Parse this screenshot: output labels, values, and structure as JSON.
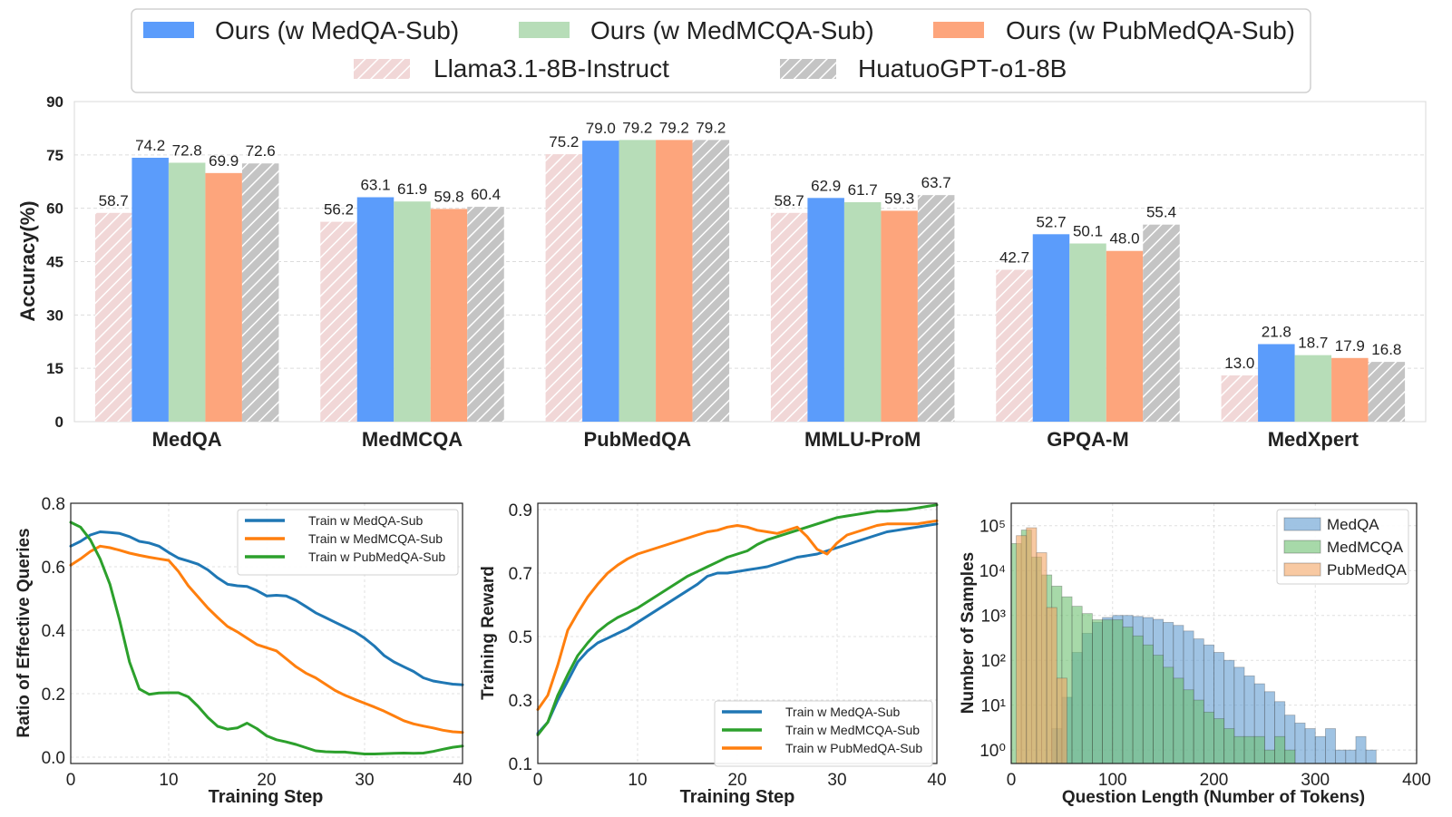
{
  "legend": {
    "items": [
      {
        "label": "Ours (w MedQA-Sub)",
        "color": "#5b9cfb",
        "hatch": false
      },
      {
        "label": "Ours (w MedMCQA-Sub)",
        "color": "#b7ddb8",
        "hatch": false
      },
      {
        "label": "Ours (w PubMedQA-Sub)",
        "color": "#fda57c",
        "hatch": false
      },
      {
        "label": "Llama3.1-8B-Instruct",
        "color": "#f1d7d7",
        "hatch": true
      },
      {
        "label": "HuatuoGPT-o1-8B",
        "color": "#c4c4c4",
        "hatch": true
      }
    ]
  },
  "chart_data": [
    {
      "type": "bar",
      "title": "",
      "xlabel": "",
      "ylabel": "Accuracy(%)",
      "ylim": [
        0,
        90
      ],
      "yticks": [
        "0",
        "15",
        "30",
        "45",
        "60",
        "75",
        "90"
      ],
      "categories": [
        "MedQA",
        "MedMCQA",
        "PubMedQA",
        "MMLU-ProM",
        "GPQA-M",
        "MedXpert"
      ],
      "series": [
        {
          "name": "Llama3.1-8B-Instruct",
          "color": "#f1d7d7",
          "hatch": true,
          "values": [
            58.7,
            56.2,
            75.2,
            58.7,
            42.7,
            13.0
          ],
          "labels": [
            "58.7",
            "56.2",
            "75.2",
            "58.7",
            "42.7",
            "13.0"
          ]
        },
        {
          "name": "Ours (w MedQA-Sub)",
          "color": "#5b9cfb",
          "hatch": false,
          "values": [
            74.2,
            63.1,
            79.0,
            62.9,
            52.7,
            21.8
          ],
          "labels": [
            "74.2",
            "63.1",
            "79.0",
            "62.9",
            "52.7",
            "21.8"
          ]
        },
        {
          "name": "Ours (w MedMCQA-Sub)",
          "color": "#b7ddb8",
          "hatch": false,
          "values": [
            72.8,
            61.9,
            79.2,
            61.7,
            50.1,
            18.7
          ],
          "labels": [
            "72.8",
            "61.9",
            "79.2",
            "61.7",
            "50.1",
            "18.7"
          ]
        },
        {
          "name": "Ours (w PubMedQA-Sub)",
          "color": "#fda57c",
          "hatch": false,
          "values": [
            69.9,
            59.8,
            79.2,
            59.3,
            48.0,
            17.9
          ],
          "labels": [
            "69.9",
            "59.8",
            "79.2",
            "59.3",
            "48.0",
            "17.9"
          ]
        },
        {
          "name": "HuatuoGPT-o1-8B",
          "color": "#c4c4c4",
          "hatch": true,
          "values": [
            72.6,
            60.4,
            79.2,
            63.7,
            55.4,
            16.8
          ],
          "labels": [
            "72.6",
            "60.4",
            "79.2",
            "63.7",
            "55.4",
            "16.8"
          ]
        }
      ]
    },
    {
      "type": "line",
      "xlabel": "Training Step",
      "ylabel": "Ratio of Effective Queries",
      "xlim": [
        0,
        40
      ],
      "ylim": [
        -0.02,
        0.8
      ],
      "xticks": [
        0,
        10,
        20,
        30,
        40
      ],
      "yticks": [
        0.0,
        0.2,
        0.4,
        0.6,
        0.8
      ],
      "ytick_labels": [
        "0.0",
        "0.2",
        "0.4",
        "0.6",
        "0.8"
      ],
      "x": [
        0,
        1,
        2,
        3,
        4,
        5,
        6,
        7,
        8,
        9,
        10,
        11,
        12,
        13,
        14,
        15,
        16,
        17,
        18,
        19,
        20,
        21,
        22,
        23,
        24,
        25,
        26,
        27,
        28,
        29,
        30,
        31,
        32,
        33,
        34,
        35,
        36,
        37,
        38,
        39,
        40
      ],
      "series": [
        {
          "name": "Train w MedQA-Sub",
          "color": "#1f77b4",
          "values": [
            0.665,
            0.68,
            0.7,
            0.71,
            0.708,
            0.705,
            0.695,
            0.68,
            0.675,
            0.665,
            0.645,
            0.627,
            0.618,
            0.608,
            0.59,
            0.565,
            0.545,
            0.54,
            0.538,
            0.525,
            0.508,
            0.51,
            0.508,
            0.494,
            0.475,
            0.455,
            0.44,
            0.425,
            0.41,
            0.395,
            0.375,
            0.35,
            0.32,
            0.3,
            0.285,
            0.27,
            0.25,
            0.24,
            0.235,
            0.23,
            0.228
          ]
        },
        {
          "name": "Train w MedMCQA-Sub",
          "color": "#ff7f0e",
          "values": [
            0.605,
            0.625,
            0.648,
            0.665,
            0.66,
            0.652,
            0.643,
            0.636,
            0.63,
            0.625,
            0.62,
            0.585,
            0.54,
            0.505,
            0.47,
            0.44,
            0.412,
            0.395,
            0.375,
            0.355,
            0.345,
            0.335,
            0.31,
            0.285,
            0.265,
            0.25,
            0.23,
            0.21,
            0.195,
            0.182,
            0.17,
            0.158,
            0.145,
            0.13,
            0.115,
            0.105,
            0.098,
            0.092,
            0.085,
            0.08,
            0.078
          ]
        },
        {
          "name": "Train w PubMedQA-Sub",
          "color": "#2ca02c",
          "values": [
            0.74,
            0.725,
            0.685,
            0.625,
            0.545,
            0.43,
            0.3,
            0.215,
            0.198,
            0.202,
            0.203,
            0.203,
            0.19,
            0.16,
            0.125,
            0.097,
            0.088,
            0.092,
            0.107,
            0.09,
            0.067,
            0.055,
            0.048,
            0.04,
            0.03,
            0.02,
            0.017,
            0.016,
            0.016,
            0.013,
            0.01,
            0.01,
            0.011,
            0.012,
            0.013,
            0.012,
            0.013,
            0.018,
            0.025,
            0.031,
            0.035
          ]
        }
      ]
    },
    {
      "type": "line",
      "xlabel": "Training Step",
      "ylabel": "Training Reward",
      "xlim": [
        0,
        40
      ],
      "ylim": [
        0.1,
        0.92
      ],
      "xticks": [
        0,
        10,
        20,
        30,
        40
      ],
      "yticks": [
        0.1,
        0.3,
        0.5,
        0.7,
        0.9
      ],
      "ytick_labels": [
        "0.1",
        "0.3",
        "0.5",
        "0.7",
        "0.9"
      ],
      "x": [
        0,
        1,
        2,
        3,
        4,
        5,
        6,
        7,
        8,
        9,
        10,
        11,
        12,
        13,
        14,
        15,
        16,
        17,
        18,
        19,
        20,
        21,
        22,
        23,
        24,
        25,
        26,
        27,
        28,
        29,
        30,
        31,
        32,
        33,
        34,
        35,
        36,
        37,
        38,
        39,
        40
      ],
      "series": [
        {
          "name": "Train w MedQA-Sub",
          "color": "#1f77b4",
          "values": [
            0.195,
            0.23,
            0.3,
            0.36,
            0.42,
            0.455,
            0.48,
            0.495,
            0.51,
            0.525,
            0.545,
            0.565,
            0.585,
            0.605,
            0.625,
            0.645,
            0.665,
            0.69,
            0.7,
            0.7,
            0.705,
            0.71,
            0.715,
            0.72,
            0.73,
            0.74,
            0.75,
            0.755,
            0.76,
            0.77,
            0.78,
            0.79,
            0.8,
            0.81,
            0.82,
            0.83,
            0.835,
            0.84,
            0.845,
            0.85,
            0.855
          ]
        },
        {
          "name": "Train w MedMCQA-Sub",
          "color": "#2ca02c",
          "values": [
            0.19,
            0.23,
            0.315,
            0.38,
            0.44,
            0.48,
            0.515,
            0.54,
            0.56,
            0.575,
            0.59,
            0.61,
            0.63,
            0.65,
            0.67,
            0.69,
            0.705,
            0.72,
            0.735,
            0.75,
            0.76,
            0.77,
            0.79,
            0.805,
            0.815,
            0.825,
            0.835,
            0.845,
            0.855,
            0.865,
            0.875,
            0.88,
            0.885,
            0.89,
            0.895,
            0.895,
            0.898,
            0.9,
            0.905,
            0.91,
            0.915
          ]
        },
        {
          "name": "Train w PubMedQA-Sub",
          "color": "#ff7f0e",
          "values": [
            0.27,
            0.315,
            0.41,
            0.52,
            0.575,
            0.625,
            0.665,
            0.7,
            0.725,
            0.745,
            0.76,
            0.77,
            0.78,
            0.79,
            0.8,
            0.81,
            0.82,
            0.83,
            0.835,
            0.845,
            0.85,
            0.845,
            0.835,
            0.83,
            0.825,
            0.835,
            0.845,
            0.815,
            0.775,
            0.76,
            0.795,
            0.82,
            0.83,
            0.84,
            0.85,
            0.855,
            0.855,
            0.855,
            0.855,
            0.86,
            0.865
          ]
        }
      ]
    },
    {
      "type": "histogram",
      "xlabel": "Question Length (Number of Tokens)",
      "ylabel": "Number of Samples",
      "xlim": [
        0,
        400
      ],
      "yscale": "log",
      "ylim_log10": [
        -0.3,
        5.5
      ],
      "xticks": [
        0,
        100,
        200,
        300,
        400
      ],
      "ytick_labels": [
        "10⁰",
        "10¹",
        "10²",
        "10³",
        "10⁴",
        "10⁵"
      ],
      "bin_width": 10,
      "series": [
        {
          "name": "MedQA",
          "color": "#5f9bd0",
          "bin_start": 40,
          "counts": [
            3,
            15,
            150,
            400,
            700,
            900,
            1000,
            1000,
            950,
            900,
            820,
            700,
            600,
            450,
            300,
            220,
            150,
            100,
            70,
            45,
            30,
            20,
            12,
            6,
            4,
            3,
            2,
            3,
            1,
            1,
            2,
            1
          ]
        },
        {
          "name": "MedMCQA",
          "color": "#6cc070",
          "bin_start": 0,
          "counts": [
            40000,
            80000,
            20000,
            8000,
            4500,
            2600,
            1600,
            1100,
            800,
            800,
            800,
            550,
            350,
            220,
            130,
            70,
            40,
            22,
            13,
            7,
            5,
            3,
            2,
            2,
            2,
            1,
            2,
            1
          ]
        },
        {
          "name": "PubMedQA",
          "color": "#f3a564",
          "bin_start": 5,
          "counts": [
            60000,
            90000,
            25000,
            1500,
            40
          ]
        }
      ]
    }
  ]
}
